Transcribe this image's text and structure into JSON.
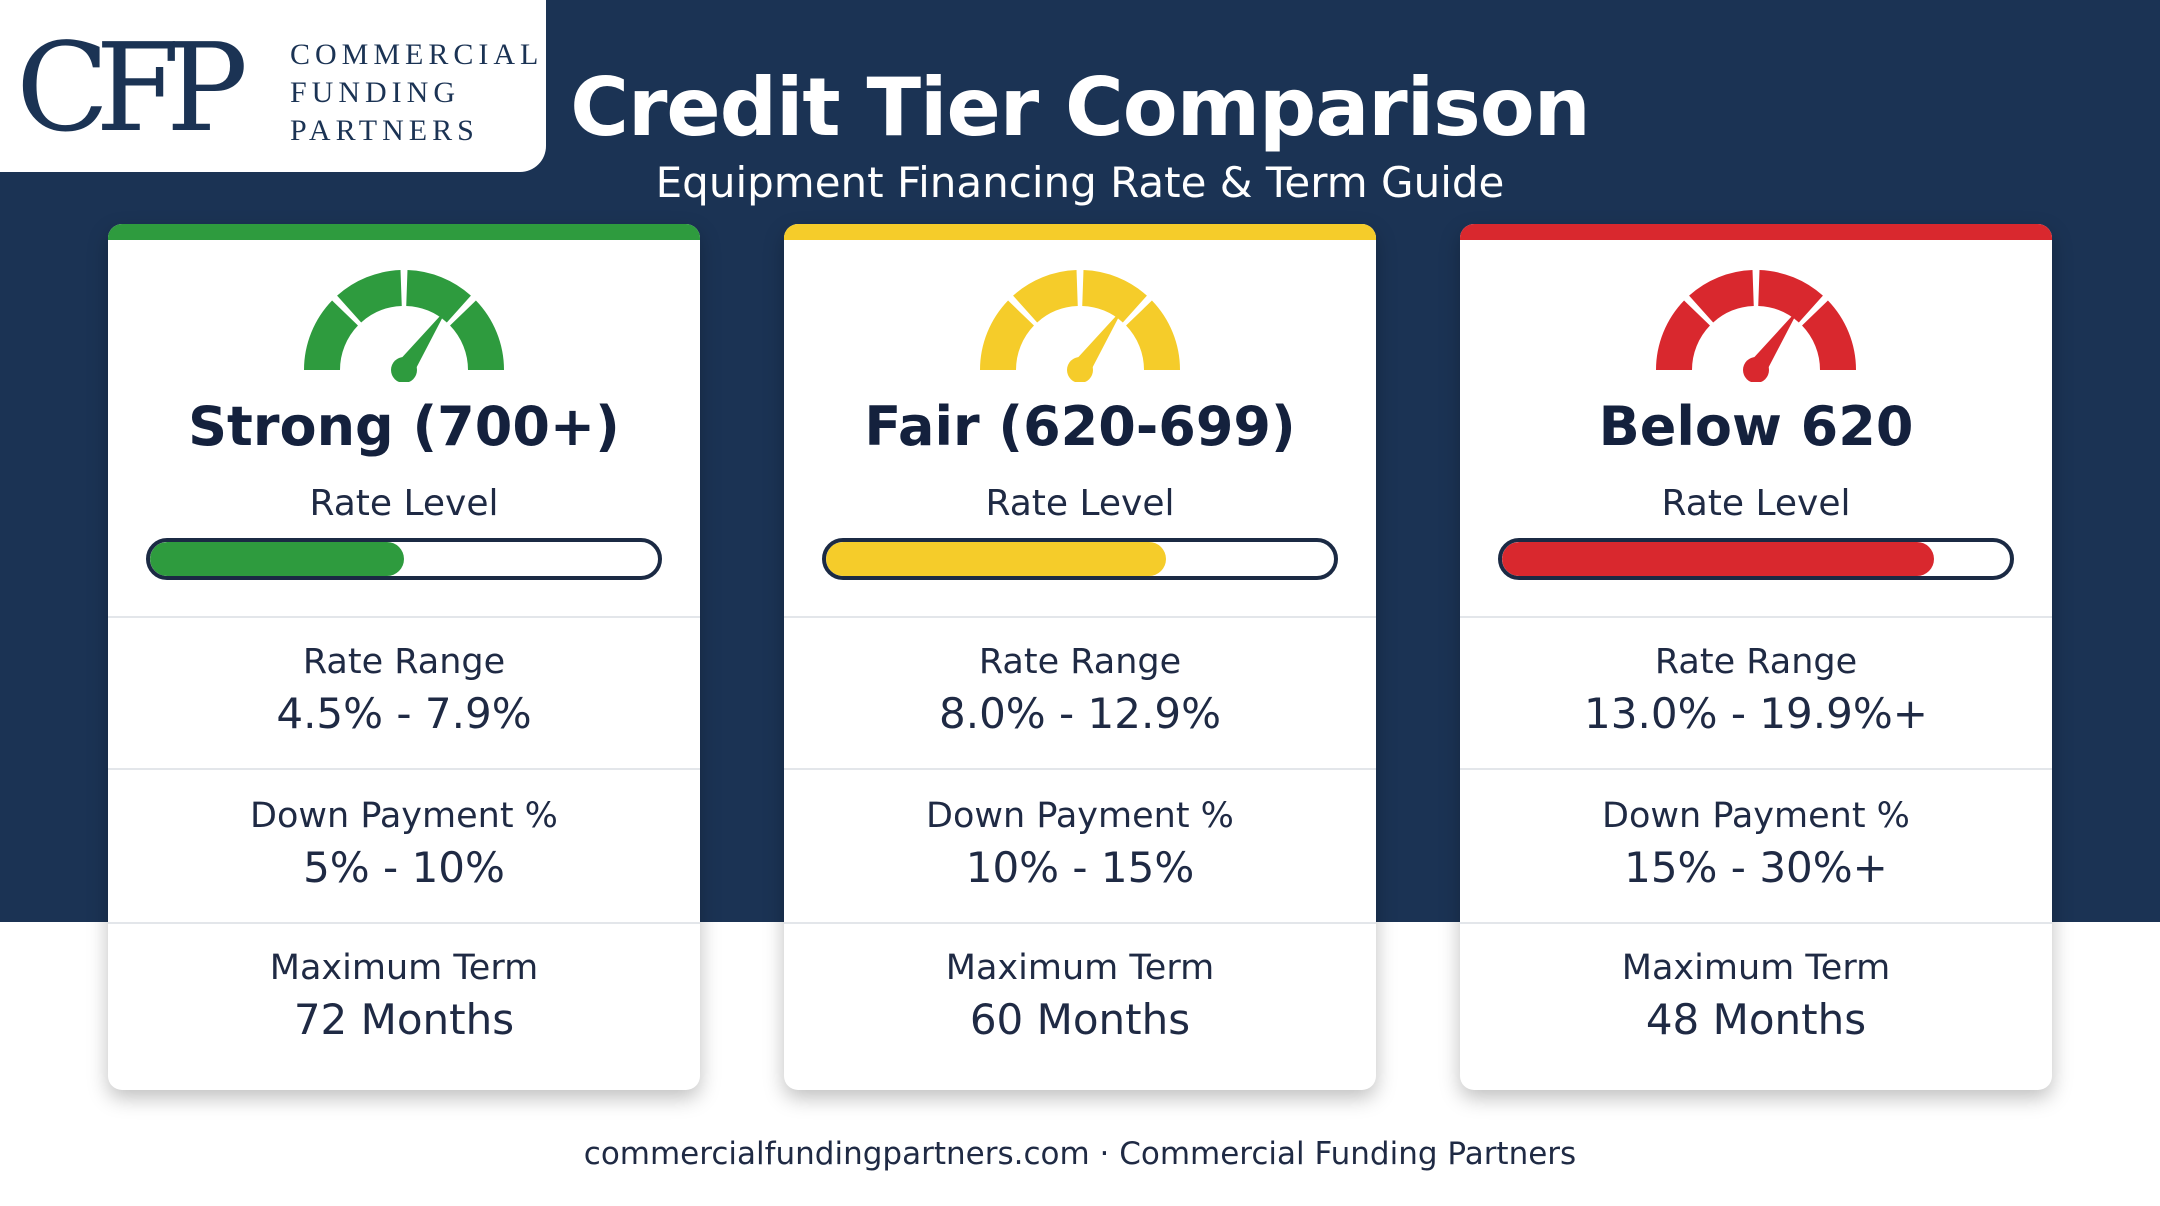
{
  "logo": {
    "mark": "CFP",
    "lines": [
      "COMMERCIAL",
      "FUNDING",
      "PARTNERS"
    ]
  },
  "header": {
    "title": "Credit Tier Comparison",
    "subtitle": "Equipment Financing Rate & Term Guide"
  },
  "colors": {
    "background": "#1b3354",
    "green": "#2e9b3e",
    "yellow": "#f5cc2a",
    "red": "#d9282e"
  },
  "tiers": [
    {
      "name": "Strong (700+)",
      "accent": "#2e9b3e",
      "gauge_icon": "speedometer-low-icon",
      "rate_level_label": "Rate Level",
      "rate_level_fraction": 0.5,
      "rate_range_label": "Rate Range",
      "rate_range": "4.5% - 7.9%",
      "down_payment_label": "Down Payment %",
      "down_payment": "5% - 10%",
      "max_term_label": "Maximum Term",
      "max_term": "72 Months"
    },
    {
      "name": "Fair (620-699)",
      "accent": "#f5cc2a",
      "gauge_icon": "speedometer-mid-icon",
      "rate_level_label": "Rate Level",
      "rate_level_fraction": 0.67,
      "rate_range_label": "Rate Range",
      "rate_range": "8.0% - 12.9%",
      "down_payment_label": "Down Payment %",
      "down_payment": "10% - 15%",
      "max_term_label": "Maximum Term",
      "max_term": "60 Months"
    },
    {
      "name": "Below 620",
      "accent": "#d9282e",
      "gauge_icon": "speedometer-high-icon",
      "rate_level_label": "Rate Level",
      "rate_level_fraction": 0.85,
      "rate_range_label": "Rate Range",
      "rate_range": "13.0% - 19.9%+",
      "down_payment_label": "Down Payment %",
      "down_payment": "15% - 30%+",
      "max_term_label": "Maximum Term",
      "max_term": "48 Months"
    }
  ],
  "footer": {
    "text": "commercialfundingpartners.com · Commercial Funding Partners"
  }
}
